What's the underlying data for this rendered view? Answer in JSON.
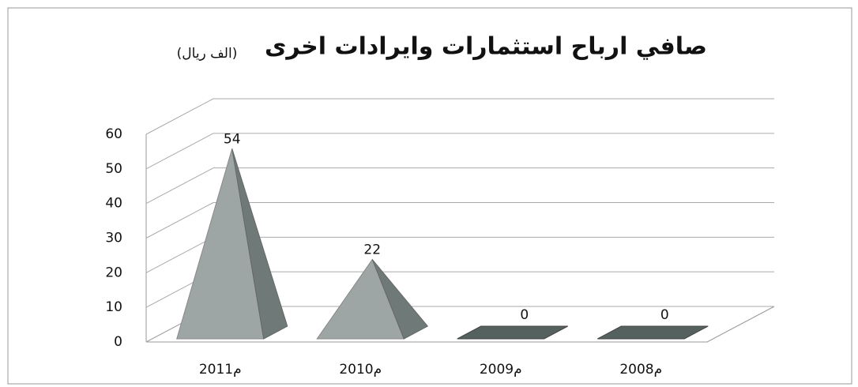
{
  "chart_data": {
    "type": "pyramid3d",
    "title": "صافي ارباح استثمارات وايرادات اخرى",
    "subtitle": "(الف ريال)",
    "categories": [
      "2011م",
      "2010م",
      "2009م",
      "2008م"
    ],
    "values": [
      54,
      22,
      0,
      0
    ],
    "ylim": [
      0,
      60
    ],
    "yticks": [
      0,
      10,
      20,
      30,
      40,
      50,
      60
    ],
    "grid": true,
    "color": "#9ea6a5"
  }
}
